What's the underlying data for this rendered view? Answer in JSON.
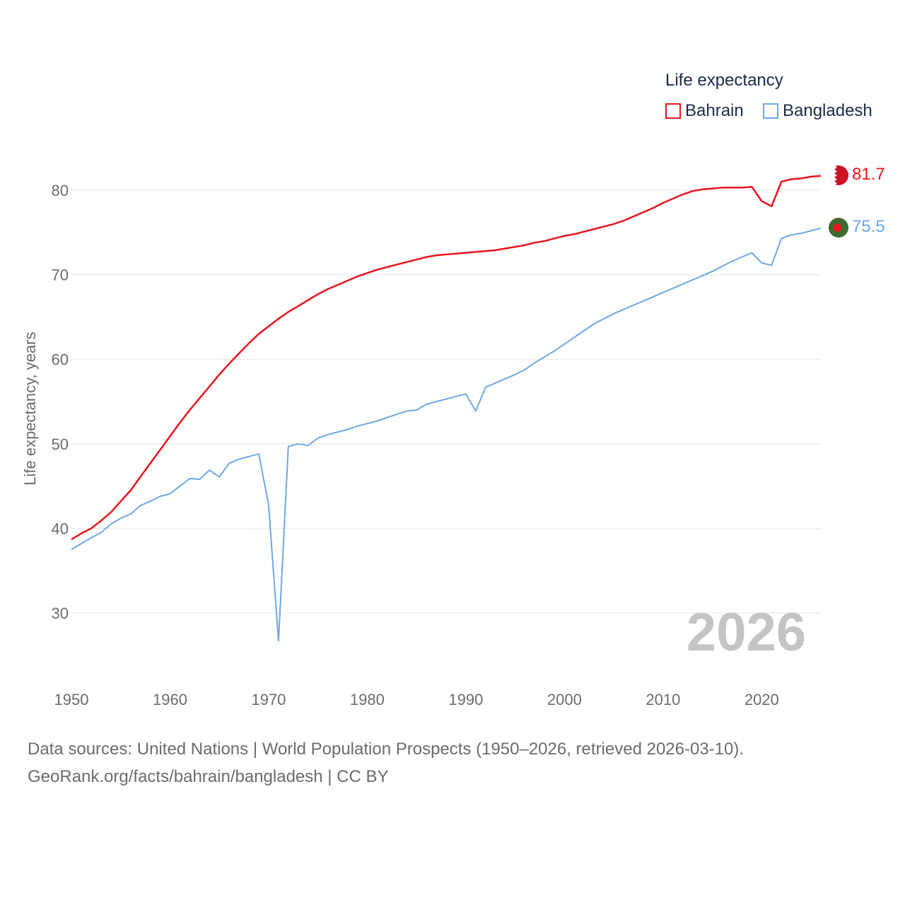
{
  "chart_data": {
    "type": "line",
    "title": "",
    "xlabel": "",
    "ylabel": "Life expectancy, years",
    "xlim": [
      1950,
      2026
    ],
    "ylim": [
      22.5,
      85
    ],
    "yticks": [
      30,
      40,
      50,
      60,
      70,
      80
    ],
    "xticks": [
      1950,
      1960,
      1970,
      1980,
      1990,
      2000,
      2010,
      2020
    ],
    "grid": true,
    "legend": {
      "title": "Life expectancy",
      "position": "top-right",
      "entries": [
        "Bahrain",
        "Bangladesh"
      ]
    },
    "year_label": "2026",
    "x": [
      1950,
      1951,
      1952,
      1953,
      1954,
      1955,
      1956,
      1957,
      1958,
      1959,
      1960,
      1961,
      1962,
      1963,
      1964,
      1965,
      1966,
      1967,
      1968,
      1969,
      1970,
      1971,
      1972,
      1973,
      1974,
      1975,
      1976,
      1977,
      1978,
      1979,
      1980,
      1981,
      1982,
      1983,
      1984,
      1985,
      1986,
      1987,
      1988,
      1989,
      1990,
      1991,
      1992,
      1993,
      1994,
      1995,
      1996,
      1997,
      1998,
      1999,
      2000,
      2001,
      2002,
      2003,
      2004,
      2005,
      2006,
      2007,
      2008,
      2009,
      2010,
      2011,
      2012,
      2013,
      2014,
      2015,
      2016,
      2017,
      2018,
      2019,
      2020,
      2021,
      2022,
      2023,
      2024,
      2025,
      2026
    ],
    "series": [
      {
        "name": "Bahrain",
        "color": "#e8141c",
        "end_label": "81.7",
        "values": [
          38.7,
          39.4,
          40.0,
          40.9,
          41.9,
          43.2,
          44.5,
          46.1,
          47.7,
          49.3,
          50.9,
          52.5,
          54.0,
          55.4,
          56.8,
          58.2,
          59.5,
          60.7,
          61.9,
          63.0,
          63.9,
          64.8,
          65.6,
          66.3,
          67.0,
          67.7,
          68.3,
          68.8,
          69.3,
          69.8,
          70.2,
          70.6,
          70.9,
          71.2,
          71.5,
          71.8,
          72.1,
          72.3,
          72.4,
          72.5,
          72.6,
          72.7,
          72.8,
          72.9,
          73.1,
          73.3,
          73.5,
          73.8,
          74.0,
          74.3,
          74.6,
          74.8,
          75.1,
          75.4,
          75.7,
          76.0,
          76.4,
          76.9,
          77.4,
          77.9,
          78.5,
          79.0,
          79.5,
          79.9,
          80.1,
          80.2,
          80.3,
          80.3,
          80.3,
          80.4,
          78.7,
          78.1,
          81.0,
          81.3,
          81.4,
          81.6,
          81.7
        ]
      },
      {
        "name": "Bangladesh",
        "color": "#6ea9e3",
        "end_label": "75.5",
        "values": [
          37.5,
          38.2,
          38.9,
          39.5,
          40.5,
          41.2,
          41.7,
          42.7,
          43.2,
          43.8,
          44.1,
          45.0,
          45.9,
          45.8,
          46.9,
          46.1,
          47.7,
          48.2,
          48.5,
          48.8,
          42.8,
          26.7,
          49.7,
          50.0,
          49.8,
          50.7,
          51.1,
          51.4,
          51.7,
          52.1,
          52.4,
          52.7,
          53.1,
          53.5,
          53.9,
          54.0,
          54.7,
          55.0,
          55.3,
          55.6,
          55.9,
          53.9,
          56.7,
          57.2,
          57.7,
          58.2,
          58.8,
          59.6,
          60.3,
          61.0,
          61.8,
          62.6,
          63.4,
          64.2,
          64.8,
          65.4,
          65.9,
          66.4,
          66.9,
          67.4,
          67.9,
          68.4,
          68.9,
          69.4,
          69.9,
          70.4,
          71.0,
          71.6,
          72.1,
          72.6,
          71.4,
          71.1,
          74.3,
          74.7,
          74.9,
          75.2,
          75.5
        ]
      }
    ]
  },
  "footer": {
    "source_line": "Data sources: United Nations | World Population Prospects (1950–2026, retrieved 2026-03-10).",
    "credit_line": "GeoRank.org/facts/bahrain/bangladesh | CC BY"
  }
}
